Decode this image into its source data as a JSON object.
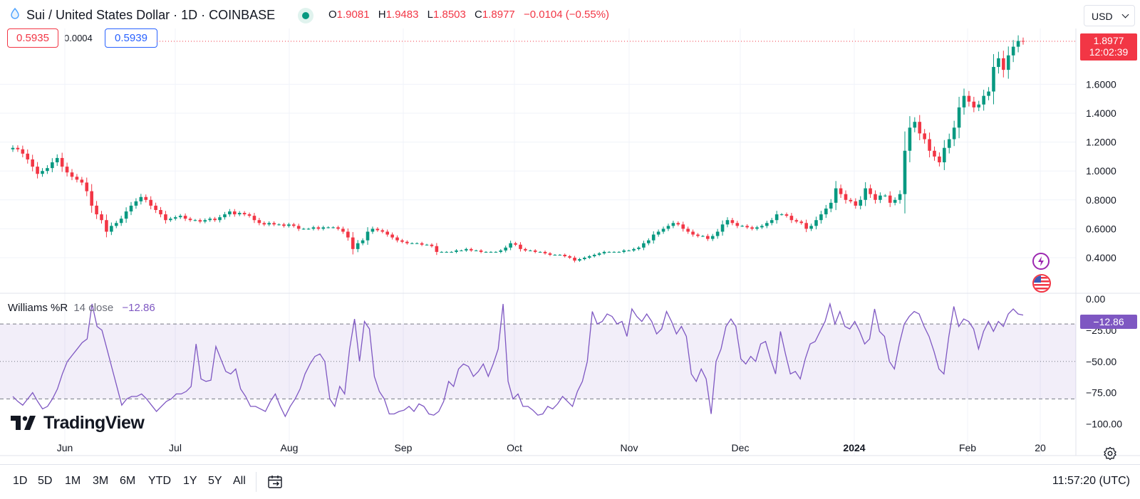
{
  "header": {
    "symbol_title": "Sui / United States Dollar · 1D · COINBASE",
    "symbol_icon": "sui-drop-icon",
    "ohlc": {
      "o_label": "O",
      "o_value": "1.9081",
      "h_label": "H",
      "h_value": "1.9483",
      "l_label": "L",
      "l_value": "1.8503",
      "c_label": "C",
      "c_value": "1.8977",
      "change": "−0.0104 (−0.55%)"
    },
    "currency": "USD"
  },
  "quote": {
    "bid": "0.5935",
    "spread": "0.0004",
    "ask": "0.5939"
  },
  "price_tag": {
    "price": "1.8977",
    "countdown": "12:02:39"
  },
  "colors": {
    "up": "#089981",
    "down": "#f23645",
    "indicator": "#7e57c2",
    "accent": "#2962ff"
  },
  "indicator": {
    "name": "Williams %R",
    "params": "14 close",
    "value": "−12.86",
    "tag": "−12.86"
  },
  "watermark": "TradingView",
  "bottom_bar": {
    "ranges": [
      "1D",
      "5D",
      "1M",
      "3M",
      "6M",
      "YTD",
      "1Y",
      "5Y",
      "All"
    ],
    "clock": "11:57:20 (UTC)"
  },
  "chart_data": {
    "type": "candlestick",
    "price_axis": {
      "ticks": [
        "0.4000",
        "0.6000",
        "0.8000",
        "1.0000",
        "1.2000",
        "1.4000",
        "1.6000"
      ]
    },
    "indicator_axis": {
      "ticks": [
        "0.00",
        "−25.00",
        "−50.00",
        "−75.00",
        "−100.00"
      ]
    },
    "time_axis": {
      "ticks": [
        "Jun",
        "Jul",
        "Aug",
        "Sep",
        "Oct",
        "Nov",
        "Dec",
        "2024",
        "Feb",
        "20"
      ]
    },
    "series": [
      {
        "name": "Sui / United States Dollar",
        "closes": [
          1.16,
          1.15,
          1.12,
          1.08,
          1.03,
          0.98,
          1.0,
          1.02,
          1.06,
          1.09,
          1.03,
          0.99,
          0.96,
          0.94,
          0.92,
          0.86,
          0.76,
          0.7,
          0.66,
          0.58,
          0.62,
          0.64,
          0.67,
          0.72,
          0.76,
          0.79,
          0.82,
          0.8,
          0.76,
          0.73,
          0.7,
          0.66,
          0.67,
          0.68,
          0.69,
          0.67,
          0.66,
          0.66,
          0.65,
          0.66,
          0.67,
          0.66,
          0.68,
          0.7,
          0.72,
          0.7,
          0.71,
          0.7,
          0.69,
          0.66,
          0.64,
          0.63,
          0.64,
          0.63,
          0.63,
          0.62,
          0.63,
          0.62,
          0.6,
          0.6,
          0.6,
          0.61,
          0.6,
          0.61,
          0.61,
          0.61,
          0.6,
          0.58,
          0.54,
          0.46,
          0.5,
          0.52,
          0.58,
          0.6,
          0.59,
          0.58,
          0.56,
          0.54,
          0.52,
          0.51,
          0.5,
          0.5,
          0.5,
          0.49,
          0.49,
          0.48,
          0.44,
          0.44,
          0.44,
          0.44,
          0.45,
          0.45,
          0.46,
          0.45,
          0.45,
          0.44,
          0.44,
          0.44,
          0.44,
          0.45,
          0.47,
          0.5,
          0.49,
          0.46,
          0.45,
          0.45,
          0.44,
          0.44,
          0.43,
          0.42,
          0.42,
          0.42,
          0.41,
          0.4,
          0.38,
          0.39,
          0.4,
          0.41,
          0.42,
          0.43,
          0.44,
          0.44,
          0.44,
          0.44,
          0.45,
          0.45,
          0.46,
          0.47,
          0.5,
          0.52,
          0.56,
          0.58,
          0.6,
          0.62,
          0.64,
          0.63,
          0.6,
          0.58,
          0.56,
          0.55,
          0.55,
          0.53,
          0.55,
          0.58,
          0.63,
          0.66,
          0.64,
          0.62,
          0.62,
          0.61,
          0.6,
          0.61,
          0.62,
          0.64,
          0.66,
          0.7,
          0.7,
          0.69,
          0.66,
          0.65,
          0.64,
          0.6,
          0.62,
          0.66,
          0.7,
          0.74,
          0.78,
          0.88,
          0.84,
          0.8,
          0.79,
          0.76,
          0.8,
          0.88,
          0.84,
          0.8,
          0.83,
          0.83,
          0.78,
          0.8,
          0.84,
          1.14,
          1.3,
          1.34,
          1.26,
          1.22,
          1.14,
          1.1,
          1.06,
          1.16,
          1.22,
          1.3,
          1.44,
          1.52,
          1.48,
          1.44,
          1.46,
          1.52,
          1.55,
          1.72,
          1.78,
          1.7,
          1.8,
          1.86,
          1.9,
          1.8977
        ]
      }
    ],
    "indicator_series": [
      {
        "name": "Williams %R",
        "values": [
          -78,
          -82,
          -85,
          -80,
          -75,
          -82,
          -88,
          -86,
          -80,
          -72,
          -60,
          -50,
          -45,
          -40,
          -35,
          -32,
          -4,
          -22,
          -25,
          -40,
          -55,
          -70,
          -85,
          -80,
          -78,
          -78,
          -76,
          -80,
          -85,
          -90,
          -86,
          -82,
          -80,
          -76,
          -76,
          -74,
          -70,
          -36,
          -64,
          -66,
          -65,
          -38,
          -48,
          -58,
          -60,
          -56,
          -72,
          -78,
          -86,
          -86,
          -88,
          -90,
          -82,
          -76,
          -86,
          -94,
          -86,
          -80,
          -72,
          -60,
          -52,
          -46,
          -44,
          -50,
          -80,
          -86,
          -70,
          -76,
          -40,
          -16,
          -50,
          -18,
          -24,
          -62,
          -74,
          -80,
          -92,
          -92,
          -90,
          -89,
          -86,
          -90,
          -84,
          -86,
          -92,
          -93,
          -90,
          -82,
          -66,
          -70,
          -56,
          -52,
          -54,
          -62,
          -58,
          -52,
          -62,
          -52,
          -40,
          -4,
          -66,
          -80,
          -76,
          -86,
          -86,
          -89,
          -93,
          -92,
          -86,
          -88,
          -84,
          -78,
          -82,
          -86,
          -74,
          -66,
          -50,
          -10,
          -20,
          -18,
          -12,
          -14,
          -20,
          -18,
          -30,
          -8,
          -14,
          -18,
          -12,
          -18,
          -28,
          -24,
          -10,
          -18,
          -28,
          -22,
          -30,
          -60,
          -66,
          -56,
          -64,
          -92,
          -50,
          -40,
          -22,
          -16,
          -22,
          -48,
          -52,
          -46,
          -50,
          -36,
          -34,
          -48,
          -60,
          -26,
          -44,
          -60,
          -58,
          -64,
          -48,
          -36,
          -34,
          -26,
          -18,
          -4,
          -20,
          -10,
          -22,
          -24,
          -18,
          -26,
          -36,
          -32,
          -8,
          -26,
          -30,
          -50,
          -56,
          -36,
          -20,
          -14,
          -10,
          -12,
          -22,
          -30,
          -42,
          -56,
          -60,
          -30,
          -6,
          -22,
          -16,
          -18,
          -24,
          -40,
          -26,
          -18,
          -26,
          -18,
          -22,
          -12,
          -8,
          -12,
          -12.86
        ]
      }
    ]
  }
}
